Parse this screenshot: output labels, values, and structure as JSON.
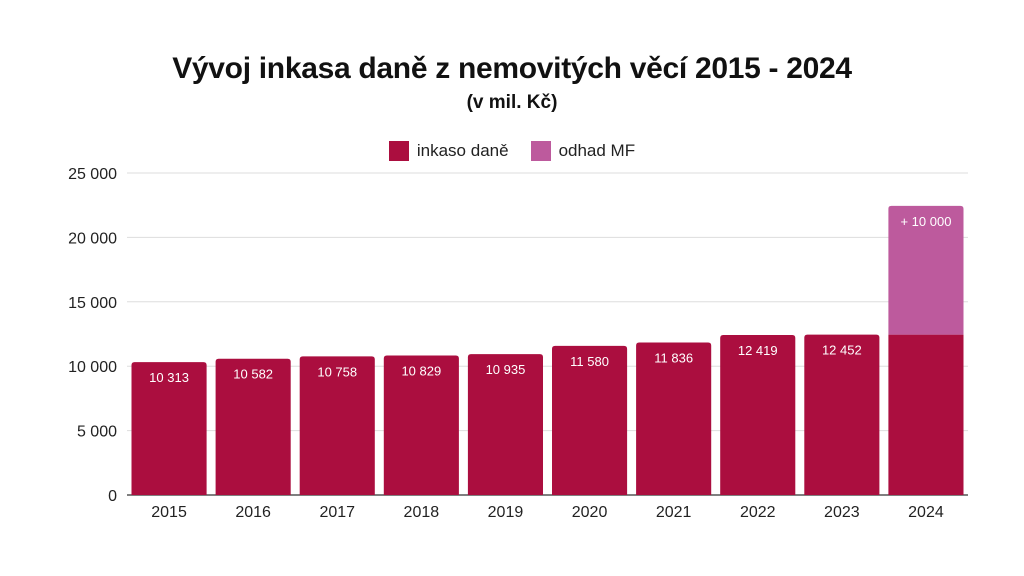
{
  "chart_data": {
    "type": "bar",
    "title": "Vývoj inkasa daně z nemovitých věcí 2015 - 2024",
    "subtitle": "(v mil. Kč)",
    "categories": [
      "2015",
      "2016",
      "2017",
      "2018",
      "2019",
      "2020",
      "2021",
      "2022",
      "2023",
      "2024"
    ],
    "series": [
      {
        "name": "inkaso daně",
        "color": "#ab0e3f",
        "values": [
          10313,
          10582,
          10758,
          10829,
          10935,
          11580,
          11836,
          12419,
          12452,
          12452
        ],
        "labels": [
          "10 313",
          "10 582",
          "10 758",
          "10 829",
          "10 935",
          "11 580",
          "11 836",
          "12 419",
          "12 452",
          ""
        ]
      },
      {
        "name": "odhad MF",
        "color": "#bd5a9d",
        "values": [
          0,
          0,
          0,
          0,
          0,
          0,
          0,
          0,
          0,
          10000
        ],
        "labels": [
          "",
          "",
          "",
          "",
          "",
          "",
          "",
          "",
          "",
          "+ 10 000"
        ]
      }
    ],
    "stacked": true,
    "ylim": [
      0,
      25000
    ],
    "yticks": [
      0,
      5000,
      10000,
      15000,
      20000,
      25000
    ],
    "ytick_labels": [
      "0",
      "5 000",
      "10 000",
      "15 000",
      "20 000",
      "25 000"
    ],
    "grid": true,
    "legend_position": "top-center",
    "xlabel": "",
    "ylabel": ""
  }
}
